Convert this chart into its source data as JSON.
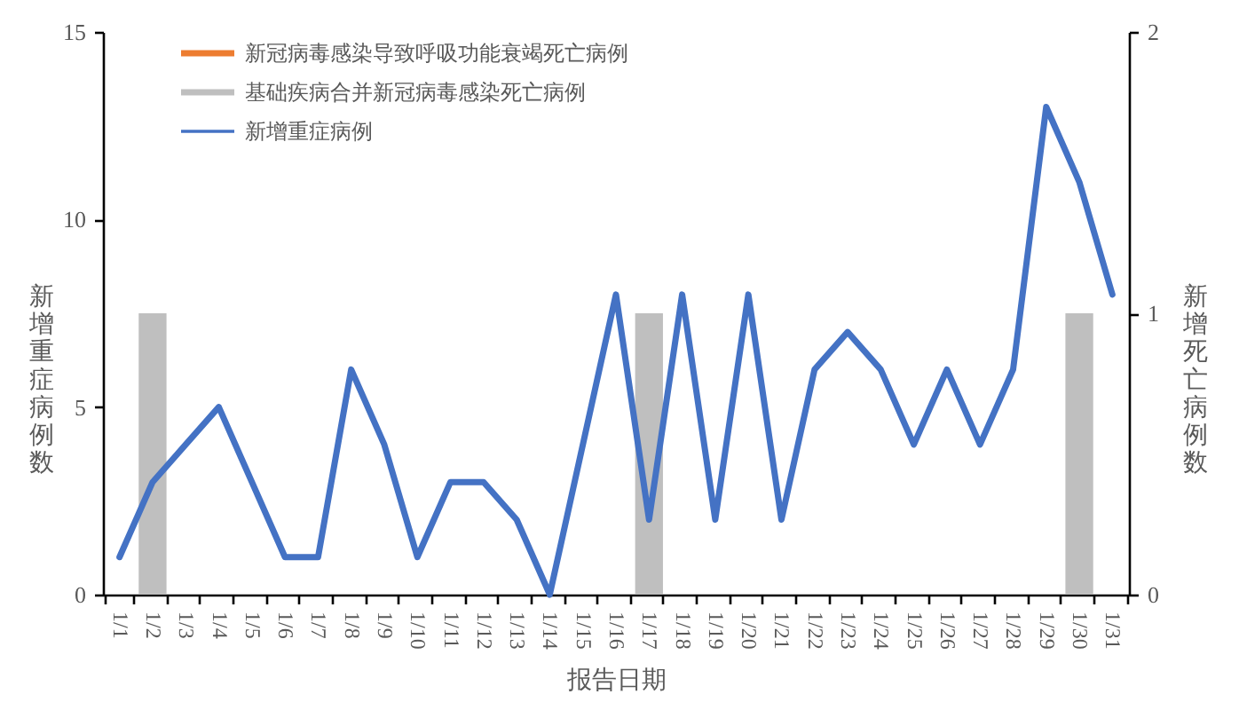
{
  "chart_data": {
    "type": "line",
    "xlabel": "报告日期",
    "ylabel": "新增重症病例数",
    "y2label": "新增死亡病例数",
    "categories": [
      "1/1",
      "1/2",
      "1/3",
      "1/4",
      "1/5",
      "1/6",
      "1/7",
      "1/8",
      "1/9",
      "1/10",
      "1/11",
      "1/12",
      "1/13",
      "1/14",
      "1/15",
      "1/16",
      "1/17",
      "1/18",
      "1/19",
      "1/20",
      "1/21",
      "1/22",
      "1/23",
      "1/24",
      "1/25",
      "1/26",
      "1/27",
      "1/28",
      "1/29",
      "1/30",
      "1/31"
    ],
    "series": [
      {
        "name": "新冠病毒感染导致呼吸功能衰竭死亡病例",
        "type": "bar",
        "axis": "y2",
        "color": "#ed7d31",
        "values": [
          null,
          null,
          null,
          null,
          null,
          null,
          null,
          null,
          null,
          null,
          null,
          null,
          null,
          null,
          null,
          null,
          null,
          null,
          null,
          null,
          null,
          null,
          null,
          null,
          null,
          null,
          null,
          null,
          null,
          null,
          null
        ]
      },
      {
        "name": "基础疾病合并新冠病毒感染死亡病例",
        "type": "bar",
        "axis": "y2",
        "color": "#bfbfbf",
        "values": [
          null,
          1,
          null,
          null,
          null,
          null,
          null,
          null,
          null,
          null,
          null,
          null,
          null,
          null,
          null,
          null,
          1,
          null,
          null,
          null,
          null,
          null,
          null,
          null,
          null,
          null,
          null,
          null,
          null,
          1,
          null
        ]
      },
      {
        "name": "新增重症病例",
        "color": "#4472c4",
        "values": [
          1,
          3,
          4,
          5,
          3,
          1,
          1,
          6,
          4,
          1,
          3,
          3,
          2,
          0,
          4,
          8,
          2,
          8,
          2,
          8,
          2,
          6,
          7,
          6,
          4,
          6,
          4,
          6,
          13,
          11,
          8
        ]
      }
    ],
    "ylim": [
      0,
      15
    ],
    "yticks": [
      0,
      5,
      10,
      15
    ],
    "y2lim": [
      0,
      2
    ],
    "y2ticks": [
      0,
      1,
      2
    ],
    "legend": "top left"
  }
}
